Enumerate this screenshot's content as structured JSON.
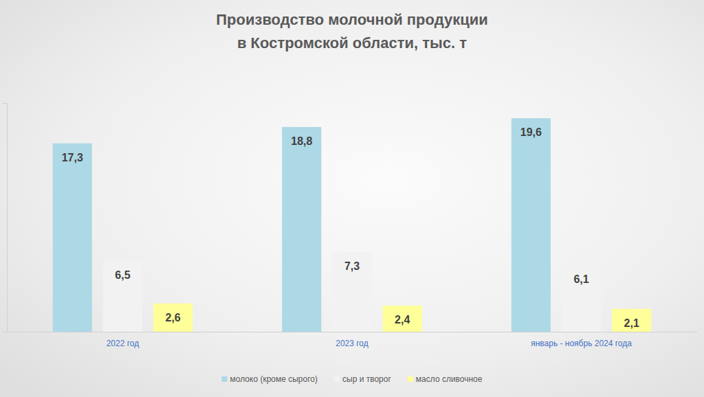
{
  "chart_data": {
    "type": "bar",
    "title": "Производство молочной продукции\nв Костромской области, тыс. т",
    "categories": [
      "2022 год",
      "2023 год",
      "январь - ноябрь 2024 года"
    ],
    "series": [
      {
        "name": "молоко (кроме сырого)",
        "color": "#add8e6",
        "values": [
          17.3,
          18.8,
          19.6
        ],
        "value_labels": [
          "17,3",
          "18,8",
          "19,6"
        ]
      },
      {
        "name": "сыр и творог",
        "color": "#f2f2f2",
        "values": [
          6.5,
          7.3,
          6.1
        ],
        "value_labels": [
          "6,5",
          "7,3",
          "6,1"
        ]
      },
      {
        "name": "масло сливочное",
        "color": "#ffff99",
        "values": [
          2.6,
          2.4,
          2.1
        ],
        "value_labels": [
          "2,6",
          "2,4",
          "2,1"
        ]
      }
    ],
    "ylim": [
      0,
      21
    ],
    "yticks": [],
    "grid": false,
    "data_labels": true,
    "tick_labels": "x",
    "legend": "bottom"
  }
}
